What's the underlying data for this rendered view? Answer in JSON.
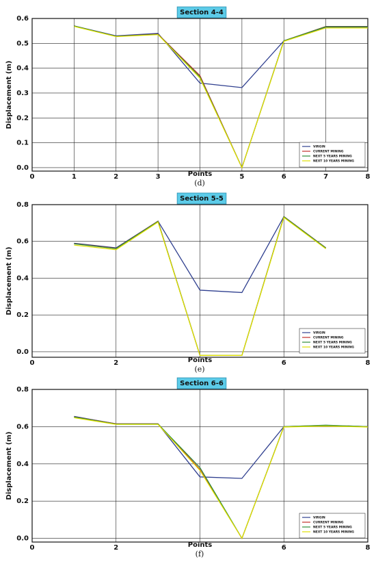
{
  "chart_data": [
    {
      "type": "line",
      "title": "Section 4-4",
      "caption": "(d)",
      "xlabel": "Points",
      "ylabel": "Displacement (m)",
      "x": [
        1,
        2,
        3,
        4,
        5,
        6,
        7,
        8
      ],
      "series": [
        {
          "name": "VIRGIN",
          "color": "#2f3f8f",
          "values": [
            0.57,
            0.53,
            0.54,
            0.34,
            0.322,
            0.51,
            0.565,
            0.565
          ]
        },
        {
          "name": "CURRENT MINING",
          "color": "#c0302a",
          "values": [
            0.57,
            0.528,
            0.537,
            0.37,
            0.0,
            0.51,
            0.568,
            0.568
          ]
        },
        {
          "name": "NEXT 5 YEARS MINING",
          "color": "#2e8b3a",
          "values": [
            0.57,
            0.528,
            0.536,
            0.365,
            0.0,
            0.51,
            0.567,
            0.567
          ]
        },
        {
          "name": "NEXT 10 YEARS MINING",
          "color": "#e0e000",
          "values": [
            0.568,
            0.527,
            0.535,
            0.36,
            0.0,
            0.508,
            0.562,
            0.562
          ]
        }
      ],
      "xlim": [
        0,
        8
      ],
      "xticks": [
        0,
        1,
        2,
        3,
        {
          "value": 4,
          "label": null
        },
        5,
        6,
        7,
        8
      ],
      "ylim": [
        -0.014,
        0.6
      ],
      "yticks": [
        {
          "value": 0,
          "label": "0.0"
        },
        0.1,
        0.2,
        0.3,
        0.4,
        0.5,
        0.6
      ],
      "grid": true,
      "legend": "lower right"
    },
    {
      "type": "line",
      "title": "Section 5-5",
      "caption": "(e)",
      "xlabel": "Points",
      "ylabel": "Displacement (m)",
      "x": [
        1,
        2,
        3,
        4,
        5,
        6,
        7
      ],
      "series": [
        {
          "name": "VIRGIN",
          "color": "#2f3f8f",
          "values": [
            0.59,
            0.565,
            0.71,
            0.335,
            0.322,
            0.735,
            0.565
          ]
        },
        {
          "name": "CURRENT MINING",
          "color": "#c0302a",
          "values": [
            0.588,
            0.562,
            0.71,
            -0.02,
            -0.02,
            0.735,
            0.565
          ]
        },
        {
          "name": "NEXT 5 YEARS MINING",
          "color": "#2e8b3a",
          "values": [
            0.587,
            0.561,
            0.709,
            -0.02,
            -0.02,
            0.734,
            0.564
          ]
        },
        {
          "name": "NEXT 10 YEARS MINING",
          "color": "#e0e000",
          "values": [
            0.58,
            0.555,
            0.705,
            -0.02,
            -0.02,
            0.73,
            0.56
          ]
        }
      ],
      "xlim": [
        0,
        8
      ],
      "xticks": [
        0,
        2,
        {
          "value": 4,
          "label": null
        },
        6,
        8
      ],
      "ylim": [
        -0.03,
        0.8
      ],
      "yticks": [
        {
          "value": 0,
          "label": "0.0"
        },
        0.2,
        0.4,
        0.6,
        0.8
      ],
      "grid": true,
      "legend": "lower right"
    },
    {
      "type": "line",
      "title": "Section 6-6",
      "caption": "(f)",
      "xlabel": "Points",
      "ylabel": "Displacement (m)",
      "x": [
        1,
        2,
        3,
        4,
        5,
        6,
        7,
        8
      ],
      "series": [
        {
          "name": "VIRGIN",
          "color": "#2f3f8f",
          "values": [
            0.655,
            0.615,
            0.615,
            0.33,
            0.322,
            0.6,
            0.605,
            0.6
          ]
        },
        {
          "name": "CURRENT MINING",
          "color": "#c0302a",
          "values": [
            0.653,
            0.615,
            0.615,
            0.37,
            0.0,
            0.6,
            0.607,
            0.6
          ]
        },
        {
          "name": "NEXT 5 YEARS MINING",
          "color": "#2e8b3a",
          "values": [
            0.652,
            0.614,
            0.614,
            0.38,
            0.0,
            0.6,
            0.608,
            0.6
          ]
        },
        {
          "name": "NEXT 10 YEARS MINING",
          "color": "#e0e000",
          "values": [
            0.648,
            0.612,
            0.612,
            0.365,
            0.0,
            0.598,
            0.603,
            0.598
          ]
        }
      ],
      "xlim": [
        0,
        8
      ],
      "xticks": [
        0,
        2,
        {
          "value": 4,
          "label": null
        },
        6,
        8
      ],
      "ylim": [
        -0.02,
        0.8
      ],
      "yticks": [
        {
          "value": 0,
          "label": "0.0"
        },
        0.2,
        0.4,
        0.6,
        0.8
      ],
      "grid": true,
      "legend": "lower right"
    }
  ]
}
